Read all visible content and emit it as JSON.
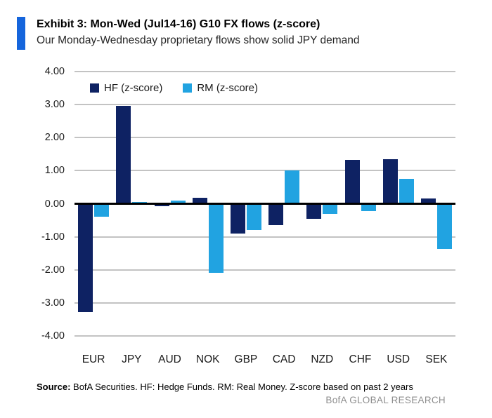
{
  "header": {
    "title": "Exhibit 3: Mon-Wed (Jul14-16) G10 FX flows (z-score)",
    "subtitle": "Our Monday-Wednesday proprietary flows show solid JPY demand"
  },
  "chart_data": {
    "type": "bar",
    "categories": [
      "EUR",
      "JPY",
      "AUD",
      "NOK",
      "GBP",
      "CAD",
      "NZD",
      "CHF",
      "USD",
      "SEK"
    ],
    "series": [
      {
        "name": "HF (z-score)",
        "color": "#0e2263",
        "values": [
          -3.27,
          2.97,
          -0.07,
          0.18,
          -0.9,
          -0.65,
          -0.45,
          1.32,
          1.35,
          0.15
        ]
      },
      {
        "name": "RM (z-score)",
        "color": "#21a3e1",
        "values": [
          -0.4,
          0.05,
          0.1,
          -2.08,
          -0.8,
          1.0,
          -0.3,
          -0.22,
          0.75,
          -1.36
        ]
      }
    ],
    "title": "Exhibit 3: Mon-Wed (Jul14-16) G10 FX flows (z-score)",
    "xlabel": "",
    "ylabel": "",
    "ylim": [
      -4,
      4
    ],
    "ytick_step": 1,
    "ytick_decimals": 2,
    "grid": true,
    "legend_position": "top-left-inside"
  },
  "footer": {
    "source_label": "Source:",
    "source_text": " BofA Securities. HF: Hedge Funds. RM: Real Money. Z-score based on past 2 years",
    "brand": "BofA GLOBAL RESEARCH"
  },
  "colors": {
    "accent": "#1565dc",
    "hf": "#0e2263",
    "rm": "#21a3e1",
    "gridline": "#c3c3c3",
    "zero_line": "#000000",
    "brand_text": "#8e8e8e"
  }
}
